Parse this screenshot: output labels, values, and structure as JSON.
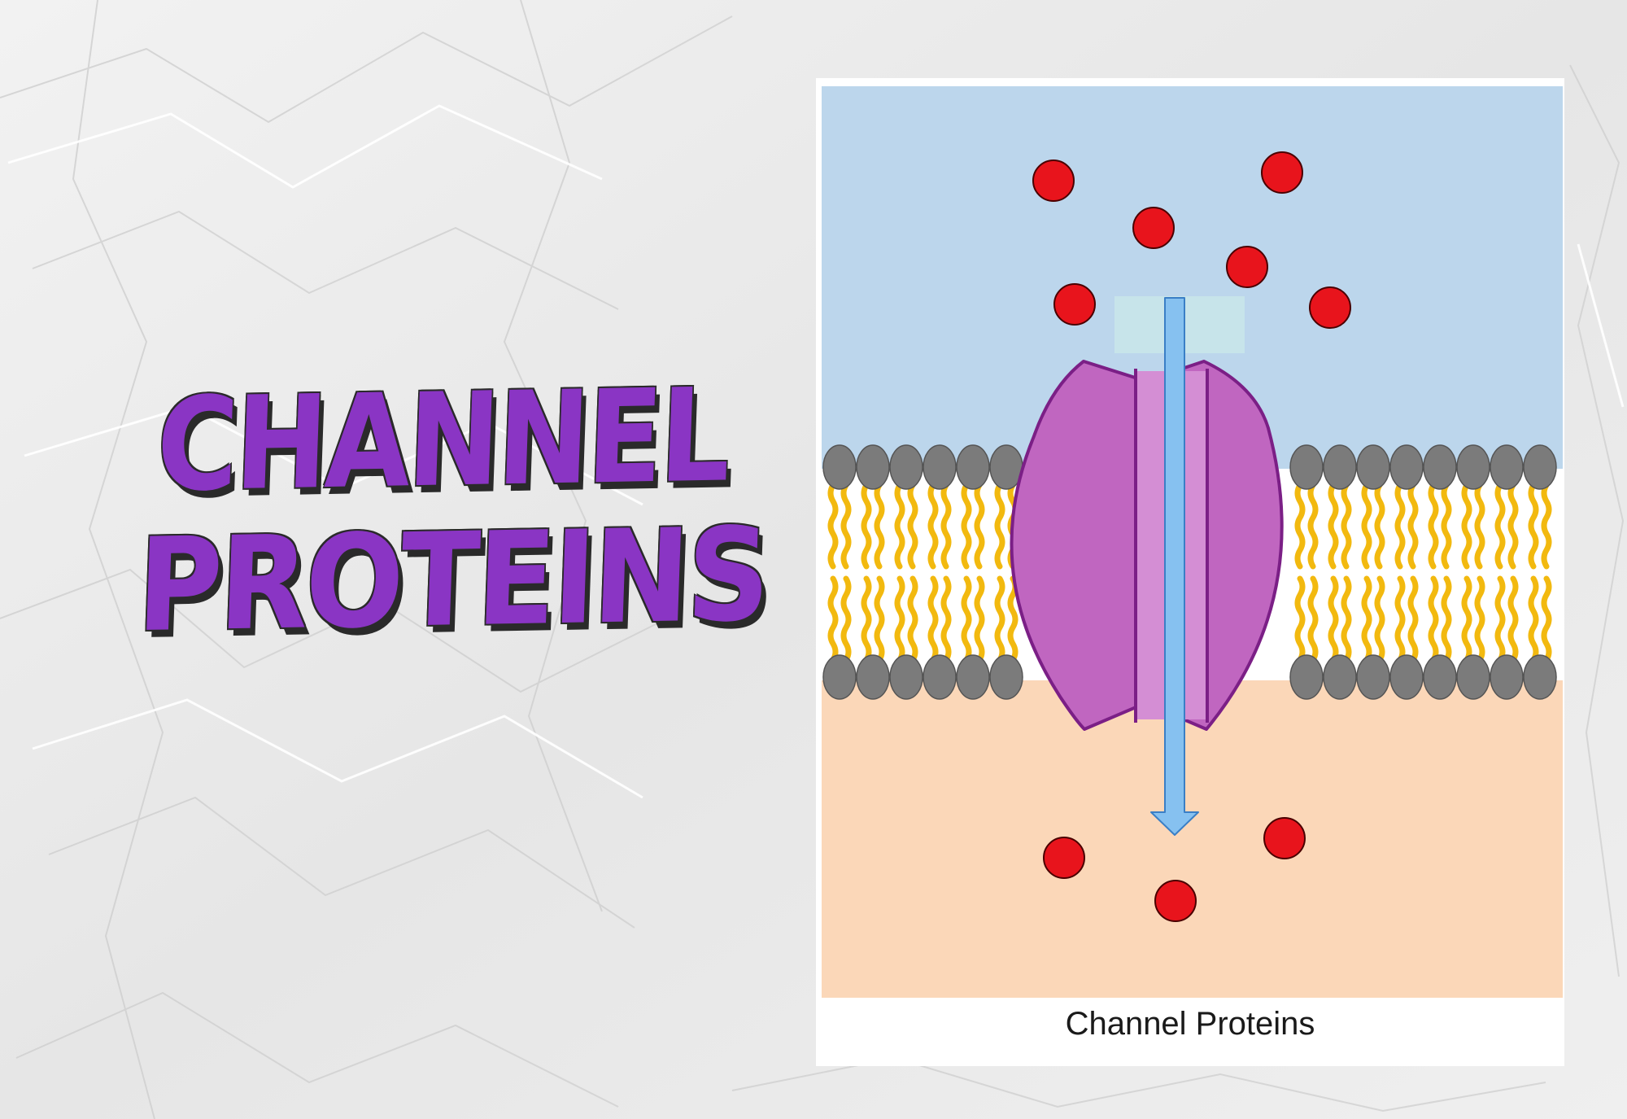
{
  "headline": {
    "line1": "CHANNEL",
    "line2": "PROTEINS"
  },
  "diagram": {
    "caption": "Channel Proteins",
    "colors": {
      "extracellular": "#bcd6ec",
      "intracellular": "#fbd7b8",
      "phospholipid_head": "#7b7b7b",
      "lipid_tail": "#f2b90f",
      "protein_fill": "#c066c0",
      "protein_stroke": "#7b1f86",
      "arrow": "#86c1f0",
      "ion": "#e8141c",
      "headline": "#8a35c4"
    }
  }
}
